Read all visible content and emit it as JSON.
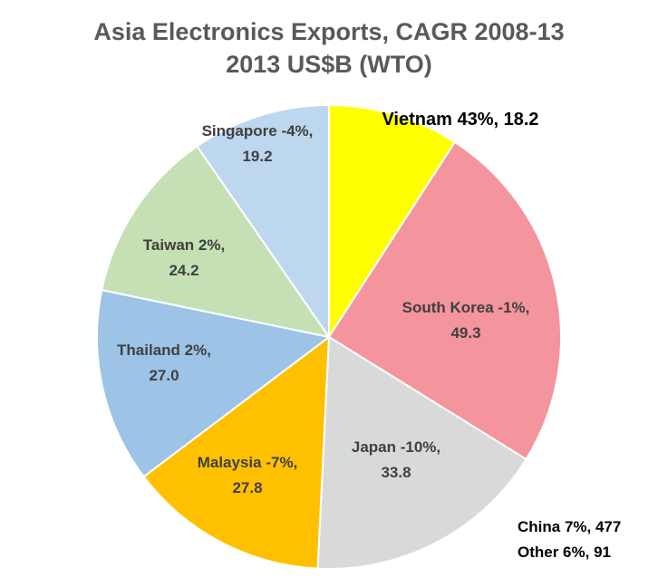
{
  "chart_data": {
    "type": "pie",
    "title": "Asia Electronics Exports, CAGR 2008-13",
    "subtitle": "2013 US$B (WTO)",
    "slices": [
      {
        "name": "Vietnam",
        "growth": "43%",
        "value": 18.2,
        "label_line1": "Vietnam 43%, 18.2",
        "label_line2": "",
        "color": "#FFFF00"
      },
      {
        "name": "South Korea",
        "growth": "-1%",
        "value": 49.3,
        "label_line1": "South Korea -1%,",
        "label_line2": "49.3",
        "color": "#F4949C"
      },
      {
        "name": "Japan",
        "growth": "-10%",
        "value": 33.8,
        "label_line1": "Japan -10%,",
        "label_line2": "33.8",
        "color": "#D9D9D9"
      },
      {
        "name": "Malaysia",
        "growth": "-7%",
        "value": 27.8,
        "label_line1": "Malaysia -7%,",
        "label_line2": "27.8",
        "color": "#FFC000"
      },
      {
        "name": "Thailand",
        "growth": "2%",
        "value": 27.0,
        "label_line1": "Thailand 2%,",
        "label_line2": "27.0",
        "color": "#9DC3E6"
      },
      {
        "name": "Taiwan",
        "growth": "2%",
        "value": 24.2,
        "label_line1": "Taiwan 2%,",
        "label_line2": "24.2",
        "color": "#C5E0B4"
      },
      {
        "name": "Singapore",
        "growth": "-4%",
        "value": 19.2,
        "label_line1": "Singapore -4%,",
        "label_line2": "19.2",
        "color": "#BDD7EE"
      }
    ],
    "notes": [
      "China 7%, 477",
      "Other 6%, 91"
    ]
  }
}
